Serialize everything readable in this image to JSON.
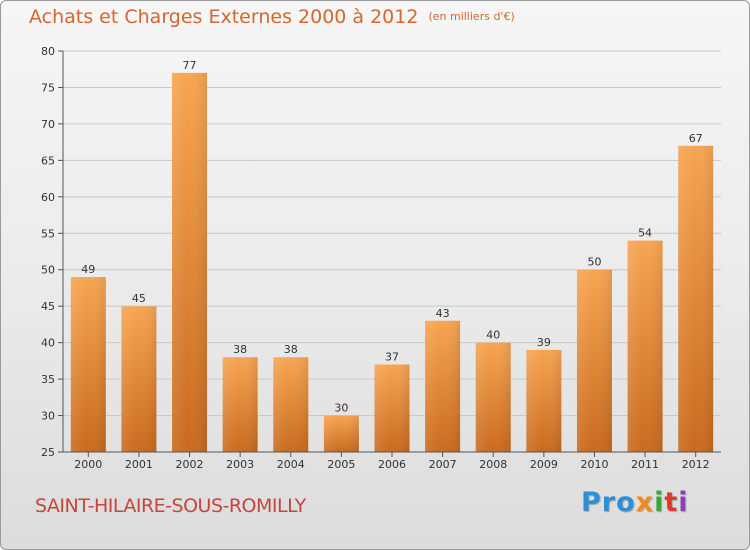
{
  "title": "Achats et Charges Externes 2000 à 2012",
  "unit": "(en milliers d'€)",
  "city": "SAINT-HILAIRE-SOUS-ROMILLY",
  "logo": {
    "text": "Proxiti",
    "parts": [
      "Pro",
      "x",
      "i",
      "t",
      "i"
    ]
  },
  "colors": {
    "bar_light": "#f7a552",
    "bar_dark": "#c96a1e",
    "title": "#d4662e",
    "city": "#c4463d",
    "grid": "#c8c8c8"
  },
  "chart_data": {
    "type": "bar",
    "title": "Achats et Charges Externes 2000 à 2012",
    "subtitle": "(en milliers d'€)",
    "xlabel": "",
    "ylabel": "",
    "categories": [
      "2000",
      "2001",
      "2002",
      "2003",
      "2004",
      "2005",
      "2006",
      "2007",
      "2008",
      "2009",
      "2010",
      "2011",
      "2012"
    ],
    "values": [
      49,
      45,
      77,
      38,
      38,
      30,
      37,
      43,
      40,
      39,
      50,
      54,
      67
    ],
    "data_labels": [
      "49",
      "45",
      "77",
      "38",
      "38",
      "30",
      "37",
      "43",
      "40",
      "39",
      "50",
      "54",
      "67"
    ],
    "ylim": [
      25,
      80
    ],
    "yticks": [
      25,
      30,
      35,
      40,
      45,
      50,
      55,
      60,
      65,
      70,
      75,
      80
    ],
    "grid": true
  }
}
